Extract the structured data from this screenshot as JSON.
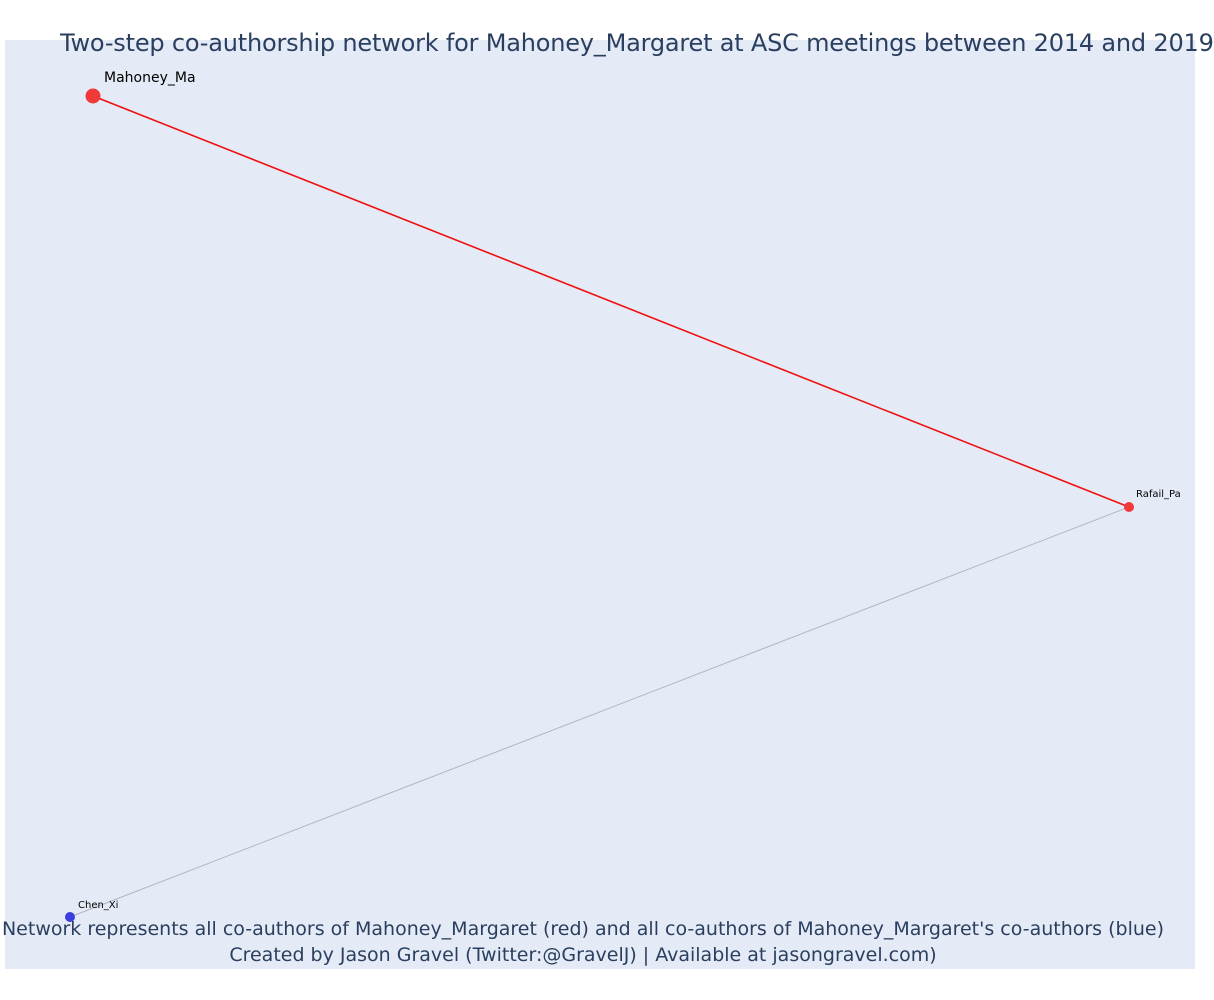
{
  "title": "Two-step co-authorship network for Mahoney_Margaret at ASC meetings between 2014 and 2019",
  "footnote": {
    "line1": "Network represents all co-authors of Mahoney_Margaret (red) and all co-authors of Mahoney_Margaret's co-authors (blue)",
    "line2": "Created by Jason Gravel (Twitter:@GravelJ) | Available at jasongravel.com)"
  },
  "colors": {
    "background": "#e5ebf6",
    "primary_node": "#f03a3a",
    "coauthor_node": "#f03a3a",
    "second_step_node": "#3b3fe0",
    "primary_edge": "#ee1111",
    "secondary_edge": "#b4b4c4",
    "text": "#2a3f5f"
  },
  "nodes": [
    {
      "id": "mahoney",
      "label": "Mahoney_Ma",
      "group": "focal",
      "color": "#f03a3a"
    },
    {
      "id": "rafail",
      "label": "Rafail_Pa",
      "group": "coauthor",
      "color": "#f03a3a"
    },
    {
      "id": "chen",
      "label": "Chen_Xi",
      "group": "second-step",
      "color": "#3b3fe0"
    }
  ],
  "edges": [
    {
      "source": "mahoney",
      "target": "rafail",
      "type": "direct"
    },
    {
      "source": "rafail",
      "target": "chen",
      "type": "second-step"
    }
  ]
}
